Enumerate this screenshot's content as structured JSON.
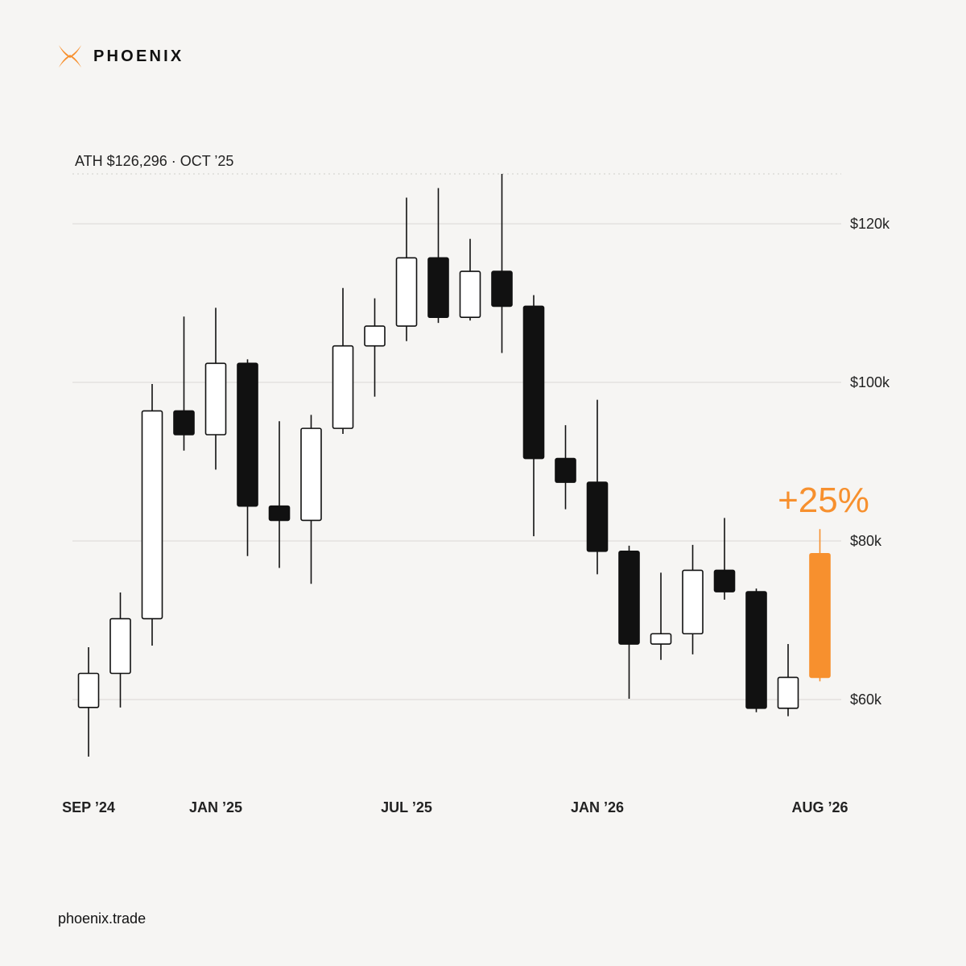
{
  "brand": {
    "name": "PHOENIX",
    "icon": "phoenix-x-logo-icon",
    "accent_color": "#f7902e"
  },
  "footer": {
    "url": "phoenix.trade"
  },
  "chart_data": {
    "type": "candlestick",
    "ath_label": "ATH $126,296 · OCT ’25",
    "ath_value": 126296,
    "callout": "+25%",
    "y_ticks": [
      {
        "value": 120000,
        "label": "$120k"
      },
      {
        "value": 100000,
        "label": "$100k"
      },
      {
        "value": 80000,
        "label": "$80k"
      },
      {
        "value": 60000,
        "label": "$60k"
      }
    ],
    "x_ticks": [
      {
        "index": 0,
        "label": "SEP ’24"
      },
      {
        "index": 4,
        "label": "JAN ’25"
      },
      {
        "index": 10,
        "label": "JUL ’25"
      },
      {
        "index": 16,
        "label": "JAN ’26"
      },
      {
        "index": 23,
        "label": "AUG ’26"
      }
    ],
    "ylim": [
      52500,
      127000
    ],
    "colors": {
      "up": "#ffffff",
      "down": "#111111",
      "highlight": "#f7902e",
      "outline": "#111111"
    },
    "candles": [
      {
        "period": "Sep 2024",
        "open": 59000,
        "high": 66600,
        "low": 52800,
        "close": 63300
      },
      {
        "period": "Oct 2024",
        "open": 63300,
        "high": 73500,
        "low": 59000,
        "close": 70200
      },
      {
        "period": "Nov 2024",
        "open": 70200,
        "high": 99800,
        "low": 66800,
        "close": 96400
      },
      {
        "period": "Dec 2024",
        "open": 96400,
        "high": 108300,
        "low": 91400,
        "close": 93400
      },
      {
        "period": "Jan 2025",
        "open": 93400,
        "high": 109400,
        "low": 89000,
        "close": 102400
      },
      {
        "period": "Feb 2025",
        "open": 102400,
        "high": 102900,
        "low": 78100,
        "close": 84400
      },
      {
        "period": "Mar 2025",
        "open": 84400,
        "high": 95100,
        "low": 76600,
        "close": 82600
      },
      {
        "period": "Apr 2025",
        "open": 82600,
        "high": 95900,
        "low": 74600,
        "close": 94200
      },
      {
        "period": "May 2025",
        "open": 94200,
        "high": 111900,
        "low": 93500,
        "close": 104600
      },
      {
        "period": "Jun 2025",
        "open": 104600,
        "high": 110600,
        "low": 98200,
        "close": 107100
      },
      {
        "period": "Jul 2025",
        "open": 107100,
        "high": 123300,
        "low": 105200,
        "close": 115700
      },
      {
        "period": "Aug 2025",
        "open": 115700,
        "high": 124500,
        "low": 107500,
        "close": 108200
      },
      {
        "period": "Sep 2025",
        "open": 108200,
        "high": 118100,
        "low": 107800,
        "close": 114000
      },
      {
        "period": "Oct 2025",
        "open": 114000,
        "high": 126296,
        "low": 103700,
        "close": 109600
      },
      {
        "period": "Nov 2025",
        "open": 109600,
        "high": 111000,
        "low": 80600,
        "close": 90400
      },
      {
        "period": "Dec 2025",
        "open": 90400,
        "high": 94600,
        "low": 84000,
        "close": 87400
      },
      {
        "period": "Jan 2026",
        "open": 87400,
        "high": 97800,
        "low": 75800,
        "close": 78700
      },
      {
        "period": "Feb 2026",
        "open": 78700,
        "high": 79400,
        "low": 60100,
        "close": 67000
      },
      {
        "period": "Mar 2026",
        "open": 67000,
        "high": 76000,
        "low": 65000,
        "close": 68300
      },
      {
        "period": "Apr 2026",
        "open": 68300,
        "high": 79500,
        "low": 65700,
        "close": 76300
      },
      {
        "period": "May 2026",
        "open": 76300,
        "high": 82900,
        "low": 72600,
        "close": 73600
      },
      {
        "period": "Jun 2026",
        "open": 73600,
        "high": 74000,
        "low": 58400,
        "close": 58900
      },
      {
        "period": "Jul 2026",
        "open": 58900,
        "high": 67000,
        "low": 57900,
        "close": 62800
      },
      {
        "period": "Aug 2026",
        "open": 62800,
        "high": 81500,
        "low": 62300,
        "close": 78400,
        "highlight": true
      }
    ]
  }
}
